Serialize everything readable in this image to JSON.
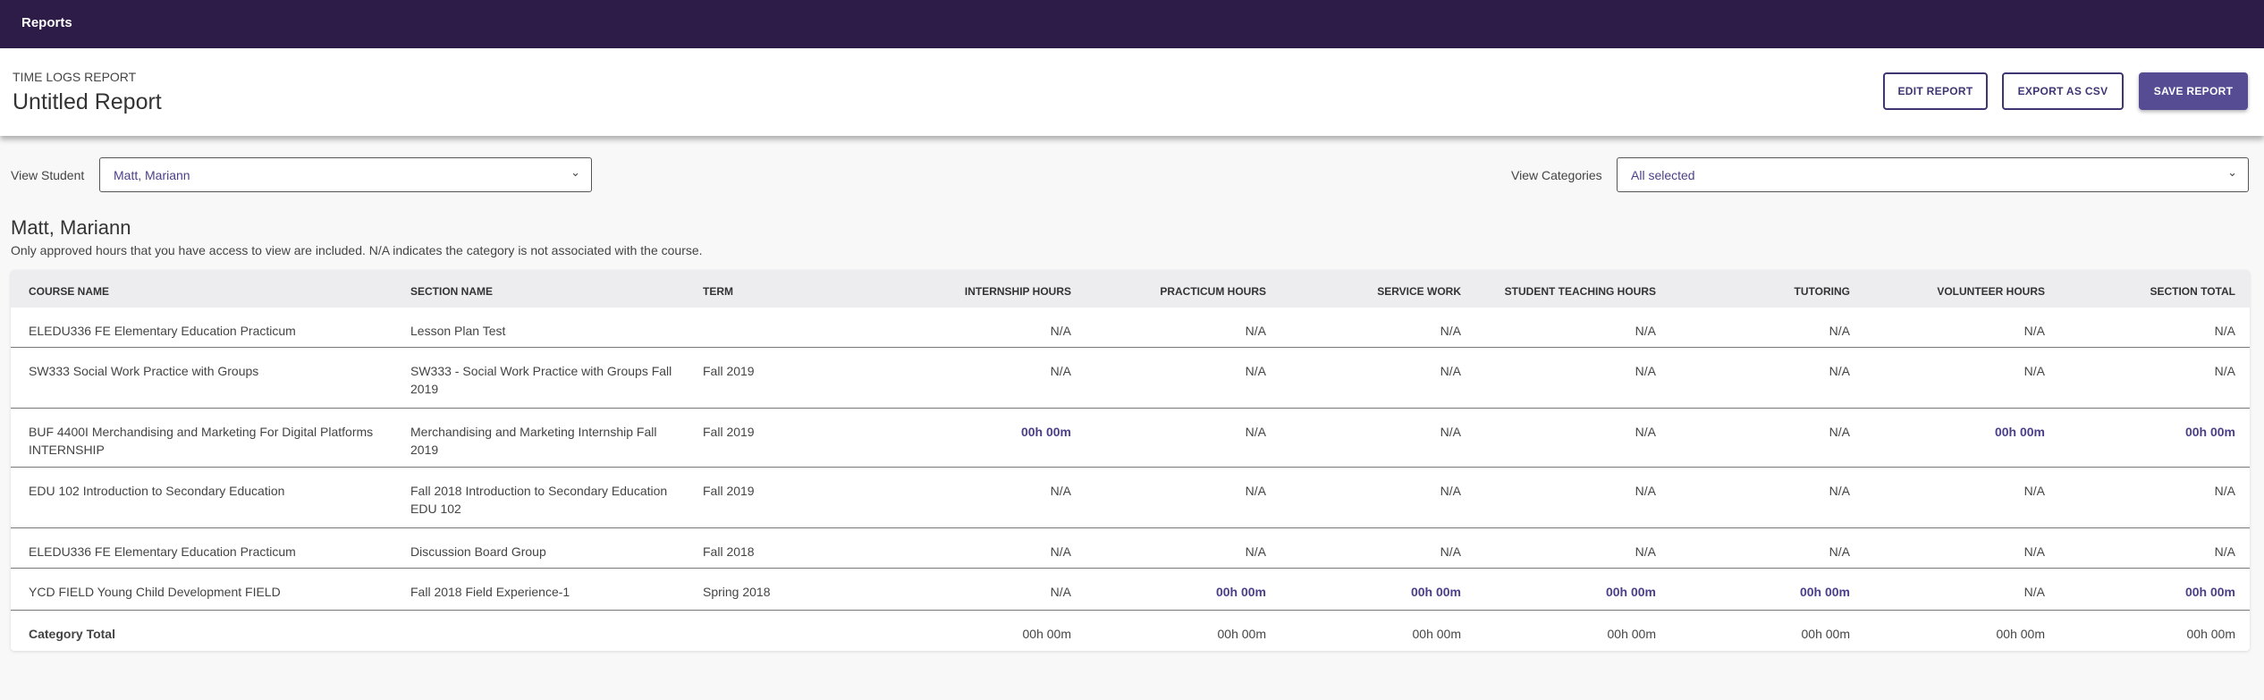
{
  "topbar": {
    "title": "Reports"
  },
  "header": {
    "kicker": "TIME LOGS REPORT",
    "title": "Untitled Report",
    "buttons": {
      "edit": "EDIT REPORT",
      "export": "EXPORT AS CSV",
      "save": "SAVE REPORT"
    }
  },
  "filters": {
    "student_label": "View Student",
    "student_value": "Matt, Mariann",
    "categories_label": "View Categories",
    "categories_value": "All selected"
  },
  "student": {
    "name": "Matt, Mariann",
    "note": "Only approved hours that you have access to view are included. N/A indicates the category is not associated with the course."
  },
  "table": {
    "columns": [
      "COURSE NAME",
      "SECTION NAME",
      "TERM",
      "INTERNSHIP HOURS",
      "PRACTICUM HOURS",
      "SERVICE WORK",
      "STUDENT TEACHING HOURS",
      "TUTORING",
      "VOLUNTEER HOURS",
      "SECTION TOTAL"
    ],
    "rows": [
      [
        "ELEDU336 FE Elementary Education Practicum",
        "Lesson Plan Test",
        "",
        "N/A",
        "N/A",
        "N/A",
        "N/A",
        "N/A",
        "N/A",
        "N/A"
      ],
      [
        "SW333 Social Work Practice with Groups",
        "SW333 - Social Work Practice with Groups Fall 2019",
        "Fall 2019",
        "N/A",
        "N/A",
        "N/A",
        "N/A",
        "N/A",
        "N/A",
        "N/A"
      ],
      [
        "BUF 4400I Merchandising and Marketing For Digital Platforms INTERNSHIP",
        "Merchandising and Marketing Internship Fall 2019",
        "Fall 2019",
        "00h 00m",
        "N/A",
        "N/A",
        "N/A",
        "N/A",
        "00h 00m",
        "00h 00m"
      ],
      [
        "EDU 102 Introduction to Secondary Education",
        "Fall 2018 Introduction to Secondary Education EDU 102",
        "Fall 2019",
        "N/A",
        "N/A",
        "N/A",
        "N/A",
        "N/A",
        "N/A",
        "N/A"
      ],
      [
        "ELEDU336 FE Elementary Education Practicum",
        "Discussion Board Group",
        "Fall 2018",
        "N/A",
        "N/A",
        "N/A",
        "N/A",
        "N/A",
        "N/A",
        "N/A"
      ],
      [
        "YCD FIELD Young Child Development FIELD",
        "Fall 2018 Field Experience-1",
        "Spring 2018",
        "N/A",
        "00h 00m",
        "00h 00m",
        "00h 00m",
        "00h 00m",
        "N/A",
        "00h 00m"
      ]
    ],
    "total": [
      "Category Total",
      "",
      "",
      "00h 00m",
      "00h 00m",
      "00h 00m",
      "00h 00m",
      "00h 00m",
      "00h 00m",
      "00h 00m"
    ]
  },
  "colors": {
    "topbar": "#2e1c48",
    "accent": "#554c94",
    "value": "#4b3f8a"
  }
}
